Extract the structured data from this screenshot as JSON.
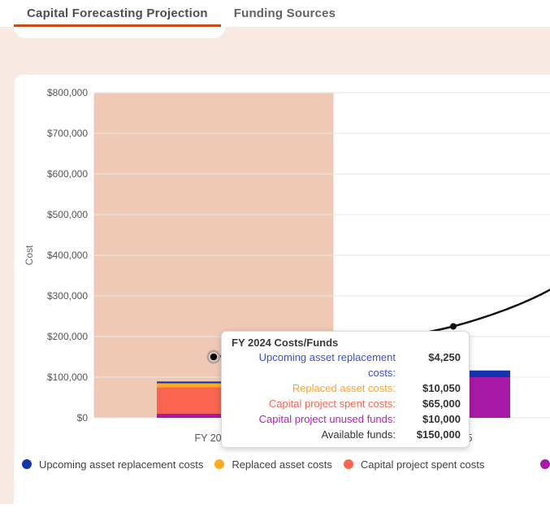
{
  "tabs": [
    {
      "label": "Capital Forecasting Projection",
      "active": true
    },
    {
      "label": "Funding Sources",
      "active": false
    }
  ],
  "colors": {
    "accent_underline": "#c24f15",
    "page_background": "#f9e9e3",
    "highlight_band": "#f0c9b6",
    "gridline": "#e6e6e6",
    "series_blue": "#1535ae",
    "series_yellow": "#ffaa1f",
    "series_salmon": "#fa6450",
    "series_magenta": "#a819a8",
    "line_black": "#111111"
  },
  "chart_data": {
    "type": "bar",
    "subtype": "stacked-bars-with-line-overlay",
    "title": "",
    "xlabel": "",
    "ylabel": "Cost",
    "categories": [
      "FY 2024",
      "FY 2025"
    ],
    "yticks": [
      "$0",
      "$100,000",
      "$200,000",
      "$300,000",
      "$400,000",
      "$500,000",
      "$600,000",
      "$700,000",
      "$800,000"
    ],
    "ytick_values": [
      0,
      100000,
      200000,
      300000,
      400000,
      500000,
      600000,
      700000,
      800000
    ],
    "ylim": [
      0,
      800000
    ],
    "grid": "horizontal",
    "highlighted_category": "FY 2024",
    "series": [
      {
        "name": "Upcoming asset replacement costs",
        "color": "#1535ae",
        "values": [
          4250,
          16500
        ]
      },
      {
        "name": "Replaced asset costs",
        "color": "#ffaa1f",
        "values": [
          10050,
          0
        ]
      },
      {
        "name": "Capital project spent costs",
        "color": "#fa6450",
        "values": [
          65000,
          0
        ]
      },
      {
        "name": "Capital project unused funds",
        "color": "#a819a8",
        "values": [
          10000,
          100000
        ]
      }
    ],
    "line_series": {
      "name": "Available funds",
      "color": "#111111",
      "values": [
        150000,
        225000
      ],
      "right_edge_value": 315000
    },
    "legend_position": "bottom",
    "legend": [
      {
        "label": "Upcoming asset replacement costs",
        "color": "#1535ae",
        "partial": false
      },
      {
        "label": "Replaced asset costs",
        "color": "#ffaa1f",
        "partial": false
      },
      {
        "label": "Capital project spent costs",
        "color": "#fa6450",
        "partial": false
      },
      {
        "label": "",
        "color": "#a819a8",
        "partial": true
      }
    ]
  },
  "tooltip": {
    "title": "FY 2024 Costs/Funds",
    "rows": [
      {
        "label": "Upcoming asset replacement costs:",
        "value": "$4,250",
        "color": "#3d50d4"
      },
      {
        "label": "Replaced asset costs:",
        "value": "$10,050",
        "color": "#ffa41c"
      },
      {
        "label": "Capital project spent costs:",
        "value": "$65,000",
        "color": "#fa6450"
      },
      {
        "label": "Capital project unused funds:",
        "value": "$10,000",
        "color": "#b322b3"
      },
      {
        "label": "Available funds:",
        "value": "$150,000",
        "color": "#333333"
      }
    ]
  }
}
